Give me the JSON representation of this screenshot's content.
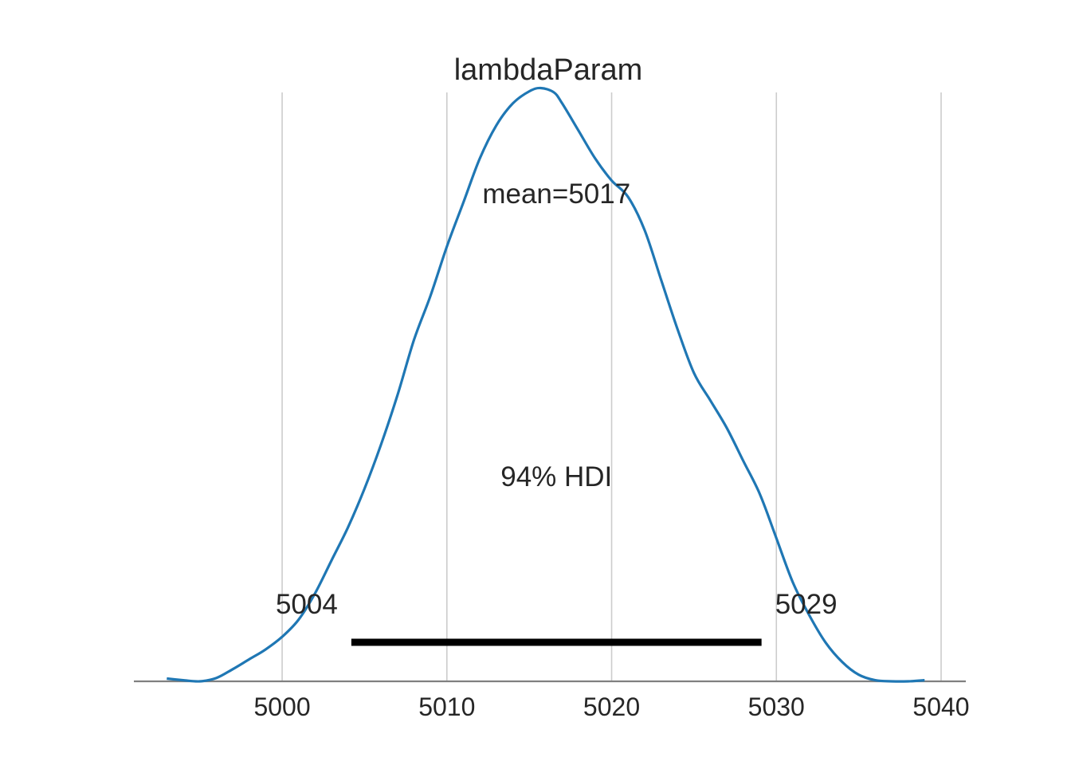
{
  "chart_data": {
    "type": "line",
    "title": "lambdaParam",
    "xlabel": "",
    "ylabel": "",
    "xlim": [
      4991,
      5041.5
    ],
    "ylim": [
      0,
      1.07
    ],
    "x_ticks": [
      5000,
      5010,
      5020,
      5030,
      5040
    ],
    "x_tick_labels": [
      "5000",
      "5010",
      "5020",
      "5030",
      "5040"
    ],
    "grid": "vertical",
    "y_axis_visible": false,
    "series": [
      {
        "color": "#1f77b4",
        "x": [
          4993.0,
          4994.0,
          4995.0,
          4996.0,
          4997.0,
          4998.0,
          4999.0,
          5000.0,
          5001.0,
          5002.0,
          5003.0,
          5004.0,
          5005.0,
          5006.0,
          5007.0,
          5008.0,
          5009.0,
          5010.0,
          5011.0,
          5012.0,
          5013.0,
          5014.0,
          5015.0,
          5015.7,
          5016.5,
          5017.0,
          5018.0,
          5019.0,
          5020.0,
          5021.0,
          5022.0,
          5023.0,
          5024.0,
          5025.0,
          5026.0,
          5027.0,
          5028.0,
          5029.0,
          5030.0,
          5031.0,
          5032.0,
          5033.0,
          5034.0,
          5035.0,
          5036.0,
          5037.0,
          5038.0,
          5039.0
        ],
        "y": [
          0.005,
          0.002,
          0.0,
          0.006,
          0.022,
          0.04,
          0.058,
          0.081,
          0.112,
          0.16,
          0.22,
          0.28,
          0.35,
          0.43,
          0.52,
          0.62,
          0.7,
          0.79,
          0.87,
          0.95,
          1.01,
          1.05,
          1.072,
          1.078,
          1.07,
          1.05,
          1.0,
          0.95,
          0.91,
          0.88,
          0.82,
          0.73,
          0.64,
          0.56,
          0.51,
          0.46,
          0.4,
          0.34,
          0.26,
          0.18,
          0.12,
          0.07,
          0.035,
          0.012,
          0.002,
          0.0,
          0.0,
          0.002
        ]
      }
    ],
    "annotations": {
      "mean_label": "mean=5017",
      "hdi_label": "94% HDI",
      "hdi_low_label": "5004",
      "hdi_high_label": "5029"
    },
    "hdi": {
      "low": 5004.2,
      "high": 5029.1
    }
  }
}
